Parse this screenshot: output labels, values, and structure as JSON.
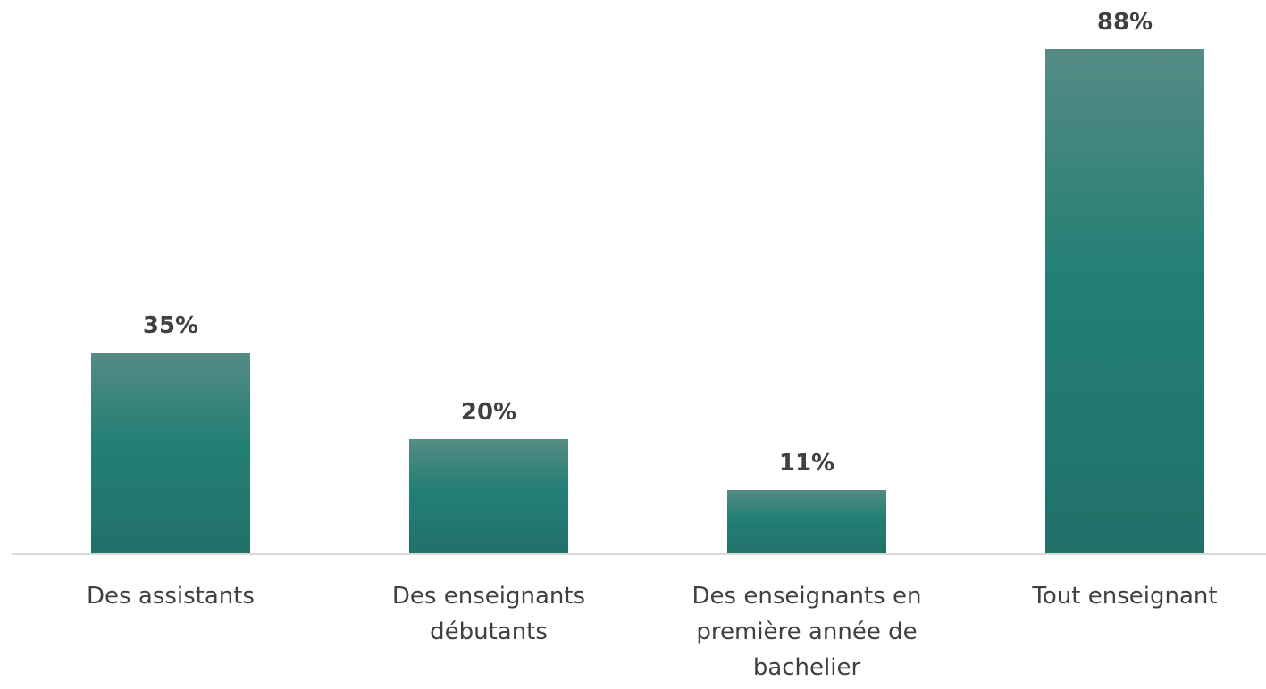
{
  "chart_data": {
    "type": "bar",
    "categories": [
      "Des assistants",
      "Des enseignants débutants",
      "Des enseignants en première année de bachelier",
      "Tout enseignant"
    ],
    "values": [
      35,
      20,
      11,
      88
    ],
    "value_labels": [
      "35%",
      "20%",
      "11%",
      "88%"
    ],
    "color": "#237f74"
  }
}
